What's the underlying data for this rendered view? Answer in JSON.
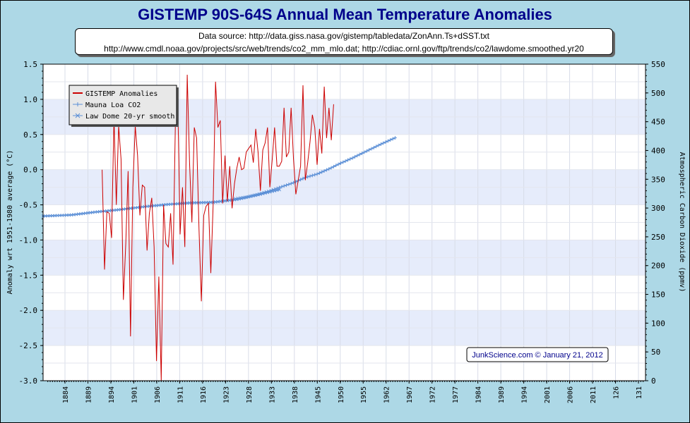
{
  "title": "GISTEMP 90S-64S Annual Mean Temperature Anomalies",
  "source_line1": "Data source: http://data.giss.nasa.gov/gistemp/tabledata/ZonAnn.Ts+dSST.txt",
  "source_line2": "http://www.cmdl.noaa.gov/projects/src/web/trends/co2_mm_mlo.dat; http://cdiac.ornl.gov/ftp/trends/co2/lawdome.smoothed.yr20",
  "credit": "JunkScience.com © January 21, 2012",
  "colors": {
    "anomaly": "#cc0000",
    "co2": "#5b8fd6",
    "band": "#e6ecfb",
    "background": "#add8e6"
  },
  "chart_data": {
    "type": "line",
    "ylabel": "Anomaly wrt 1951-1980 average (°C)",
    "y2label": "Atmospheric Carbon Dioxide (ppmv)",
    "ylim": [
      -3.0,
      1.5
    ],
    "y2lim": [
      0,
      550
    ],
    "y_ticks": [
      "1.5",
      "1.0",
      "0.5",
      "0.0",
      "-0.5",
      "-1.0",
      "-1.5",
      "-2.0",
      "-2.5",
      "-3.0"
    ],
    "y2_ticks": [
      "550",
      "500",
      "450",
      "400",
      "350",
      "300",
      "250",
      "200",
      "150",
      "100",
      "50",
      "0"
    ],
    "x_tick_labels": [
      "1884",
      "1889",
      "1894",
      "1901",
      "1906",
      "1911",
      "1916",
      "1923",
      "1928",
      "1933",
      "1938",
      "1945",
      "1950",
      "1955",
      "1962",
      "1967",
      "1972",
      "1977",
      "1984",
      "1989",
      "1994",
      "2001",
      "2006",
      "2011",
      "126",
      "131"
    ],
    "legend_position": "top-left",
    "grid": true,
    "series": [
      {
        "name": "GISTEMP Anomalies",
        "color": "#cc0000",
        "x_start": 1903,
        "values": [
          0.0,
          -1.42,
          -0.6,
          -0.62,
          -0.97,
          0.75,
          -0.5,
          0.62,
          0.15,
          -1.85,
          -1.05,
          -0.02,
          -2.37,
          -0.25,
          0.62,
          0.2,
          -0.65,
          -0.22,
          -0.25,
          -1.15,
          -0.62,
          -0.4,
          -1.1,
          -2.72,
          -1.52,
          -3.0,
          -0.5,
          -1.05,
          -1.1,
          -0.62,
          -1.35,
          0.65,
          0.98,
          -0.92,
          -0.25,
          -1.1,
          1.35,
          0.1,
          -0.75,
          0.6,
          0.45,
          -0.85,
          -1.87,
          -0.65,
          -0.52,
          -0.48,
          -1.47,
          -0.5,
          1.25,
          0.6,
          0.7,
          -0.48,
          0.2,
          -0.45,
          0.05,
          -0.55,
          -0.2,
          0.02,
          0.18,
          0.0,
          0.02,
          0.25,
          0.3,
          0.35,
          0.1,
          0.58,
          0.25,
          -0.3,
          0.28,
          0.38,
          0.6,
          -0.25,
          0.15,
          0.6,
          0.05,
          0.05,
          0.12,
          0.88,
          0.18,
          0.25,
          0.88,
          0.15,
          -0.35,
          -0.15,
          0.05,
          1.2,
          -0.15,
          0.1,
          0.4,
          0.78,
          0.6,
          0.07,
          0.58,
          0.23,
          1.18,
          0.45,
          0.88,
          0.42,
          0.93
        ]
      },
      {
        "name": "Mauna Loa CO2",
        "color": "#5b8fd6",
        "x": [
          1959,
          1964,
          1969,
          1974,
          1979,
          1984,
          1989,
          1994,
          1999,
          2004,
          2009,
          2011,
          2016,
          2021,
          2027
        ],
        "values": [
          316,
          319,
          324,
          330,
          337,
          344,
          353,
          359,
          368,
          378,
          387,
          391,
          401,
          411,
          422
        ]
      },
      {
        "name": "Law Dome 20-yr smooth",
        "color": "#5b8fd6",
        "x": [
          1878,
          1890,
          1900,
          1910,
          1920,
          1930,
          1940,
          1950,
          1960,
          1970,
          1978
        ],
        "values": [
          286,
          288,
          293,
          297,
          302,
          306,
          309,
          310,
          315,
          324,
          332
        ]
      }
    ]
  }
}
